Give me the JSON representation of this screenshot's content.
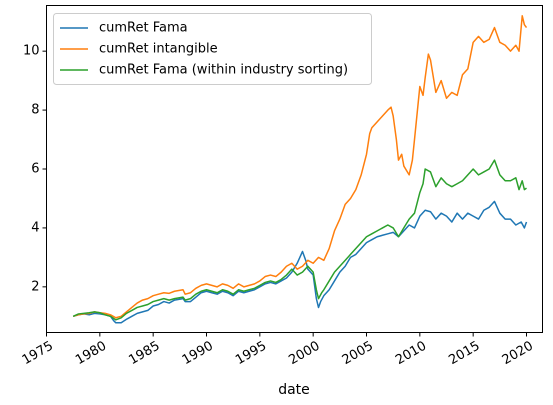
{
  "chart_data": {
    "type": "line",
    "xlabel": "date",
    "ylabel": "",
    "xlim": [
      1975.0,
      2021.5
    ],
    "ylim": [
      0.45,
      11.55
    ],
    "x_ticks": [
      1975,
      1980,
      1985,
      1990,
      1995,
      2000,
      2005,
      2010,
      2015,
      2020
    ],
    "x_tick_labels": [
      "1975",
      "1980",
      "1985",
      "1990",
      "1995",
      "2000",
      "2005",
      "2010",
      "2015",
      "2020"
    ],
    "y_ticks": [
      2,
      4,
      6,
      8,
      10
    ],
    "y_tick_labels": [
      "2",
      "4",
      "6",
      "8",
      "10"
    ],
    "grid": false,
    "legend_position": "top-left",
    "series": [
      {
        "name": "cumRet Fama",
        "color": "#1f77b4",
        "points": [
          [
            1977.5,
            1.0
          ],
          [
            1978.0,
            1.05
          ],
          [
            1978.5,
            1.08
          ],
          [
            1979.0,
            1.05
          ],
          [
            1979.5,
            1.1
          ],
          [
            1980.0,
            1.08
          ],
          [
            1980.5,
            1.05
          ],
          [
            1981.0,
            1.0
          ],
          [
            1981.3,
            0.85
          ],
          [
            1981.5,
            0.78
          ],
          [
            1982.0,
            0.78
          ],
          [
            1982.5,
            0.9
          ],
          [
            1983.0,
            1.0
          ],
          [
            1983.5,
            1.1
          ],
          [
            1984.0,
            1.15
          ],
          [
            1984.5,
            1.2
          ],
          [
            1985.0,
            1.35
          ],
          [
            1985.5,
            1.4
          ],
          [
            1986.0,
            1.5
          ],
          [
            1986.5,
            1.45
          ],
          [
            1987.0,
            1.55
          ],
          [
            1987.8,
            1.6
          ],
          [
            1988.0,
            1.5
          ],
          [
            1988.5,
            1.5
          ],
          [
            1989.0,
            1.65
          ],
          [
            1989.5,
            1.8
          ],
          [
            1990.0,
            1.85
          ],
          [
            1990.5,
            1.8
          ],
          [
            1991.0,
            1.75
          ],
          [
            1991.5,
            1.85
          ],
          [
            1992.0,
            1.8
          ],
          [
            1992.5,
            1.7
          ],
          [
            1993.0,
            1.85
          ],
          [
            1993.5,
            1.8
          ],
          [
            1994.0,
            1.85
          ],
          [
            1994.5,
            1.9
          ],
          [
            1995.0,
            2.0
          ],
          [
            1995.5,
            2.1
          ],
          [
            1996.0,
            2.15
          ],
          [
            1996.5,
            2.1
          ],
          [
            1997.0,
            2.2
          ],
          [
            1997.5,
            2.3
          ],
          [
            1998.0,
            2.5
          ],
          [
            1998.5,
            2.8
          ],
          [
            1999.0,
            3.2
          ],
          [
            1999.3,
            2.9
          ],
          [
            1999.5,
            2.6
          ],
          [
            2000.0,
            2.4
          ],
          [
            2000.3,
            1.6
          ],
          [
            2000.5,
            1.3
          ],
          [
            2000.7,
            1.5
          ],
          [
            2001.0,
            1.7
          ],
          [
            2001.5,
            1.9
          ],
          [
            2002.0,
            2.2
          ],
          [
            2002.5,
            2.5
          ],
          [
            2003.0,
            2.7
          ],
          [
            2003.5,
            3.0
          ],
          [
            2004.0,
            3.1
          ],
          [
            2004.5,
            3.3
          ],
          [
            2005.0,
            3.5
          ],
          [
            2005.5,
            3.6
          ],
          [
            2006.0,
            3.7
          ],
          [
            2006.5,
            3.75
          ],
          [
            2007.0,
            3.8
          ],
          [
            2007.5,
            3.85
          ],
          [
            2008.0,
            3.7
          ],
          [
            2008.5,
            3.9
          ],
          [
            2009.0,
            4.1
          ],
          [
            2009.5,
            4.0
          ],
          [
            2010.0,
            4.4
          ],
          [
            2010.5,
            4.6
          ],
          [
            2011.0,
            4.55
          ],
          [
            2011.5,
            4.3
          ],
          [
            2012.0,
            4.5
          ],
          [
            2012.5,
            4.4
          ],
          [
            2013.0,
            4.2
          ],
          [
            2013.5,
            4.5
          ],
          [
            2014.0,
            4.3
          ],
          [
            2014.5,
            4.5
          ],
          [
            2015.0,
            4.4
          ],
          [
            2015.5,
            4.3
          ],
          [
            2016.0,
            4.6
          ],
          [
            2016.5,
            4.7
          ],
          [
            2017.0,
            4.9
          ],
          [
            2017.5,
            4.5
          ],
          [
            2018.0,
            4.3
          ],
          [
            2018.5,
            4.3
          ],
          [
            2019.0,
            4.1
          ],
          [
            2019.5,
            4.2
          ],
          [
            2019.8,
            4.0
          ],
          [
            2020.0,
            4.2
          ]
        ]
      },
      {
        "name": "cumRet intangible",
        "color": "#ff7f0e",
        "points": [
          [
            1977.5,
            1.0
          ],
          [
            1978.0,
            1.05
          ],
          [
            1978.5,
            1.08
          ],
          [
            1979.0,
            1.1
          ],
          [
            1979.5,
            1.15
          ],
          [
            1980.0,
            1.12
          ],
          [
            1980.5,
            1.1
          ],
          [
            1981.0,
            1.05
          ],
          [
            1981.5,
            0.95
          ],
          [
            1982.0,
            1.0
          ],
          [
            1982.5,
            1.15
          ],
          [
            1983.0,
            1.3
          ],
          [
            1983.5,
            1.45
          ],
          [
            1984.0,
            1.55
          ],
          [
            1984.5,
            1.6
          ],
          [
            1985.0,
            1.7
          ],
          [
            1985.5,
            1.75
          ],
          [
            1986.0,
            1.8
          ],
          [
            1986.5,
            1.78
          ],
          [
            1987.0,
            1.85
          ],
          [
            1987.8,
            1.9
          ],
          [
            1988.0,
            1.75
          ],
          [
            1988.5,
            1.8
          ],
          [
            1989.0,
            1.95
          ],
          [
            1989.5,
            2.05
          ],
          [
            1990.0,
            2.1
          ],
          [
            1990.5,
            2.05
          ],
          [
            1991.0,
            2.0
          ],
          [
            1991.5,
            2.1
          ],
          [
            1992.0,
            2.05
          ],
          [
            1992.5,
            1.95
          ],
          [
            1993.0,
            2.1
          ],
          [
            1993.5,
            2.0
          ],
          [
            1994.0,
            2.05
          ],
          [
            1994.5,
            2.1
          ],
          [
            1995.0,
            2.2
          ],
          [
            1995.5,
            2.35
          ],
          [
            1996.0,
            2.4
          ],
          [
            1996.5,
            2.35
          ],
          [
            1997.0,
            2.5
          ],
          [
            1997.5,
            2.7
          ],
          [
            1998.0,
            2.8
          ],
          [
            1998.5,
            2.6
          ],
          [
            1999.0,
            2.7
          ],
          [
            1999.5,
            2.9
          ],
          [
            2000.0,
            2.8
          ],
          [
            2000.5,
            3.0
          ],
          [
            2001.0,
            2.9
          ],
          [
            2001.5,
            3.3
          ],
          [
            2002.0,
            3.9
          ],
          [
            2002.5,
            4.3
          ],
          [
            2003.0,
            4.8
          ],
          [
            2003.5,
            5.0
          ],
          [
            2004.0,
            5.3
          ],
          [
            2004.5,
            5.8
          ],
          [
            2005.0,
            6.5
          ],
          [
            2005.3,
            7.2
          ],
          [
            2005.5,
            7.4
          ],
          [
            2006.0,
            7.6
          ],
          [
            2006.5,
            7.8
          ],
          [
            2007.0,
            8.0
          ],
          [
            2007.3,
            8.1
          ],
          [
            2007.5,
            7.8
          ],
          [
            2007.8,
            7.0
          ],
          [
            2008.0,
            6.3
          ],
          [
            2008.3,
            6.5
          ],
          [
            2008.5,
            6.1
          ],
          [
            2009.0,
            5.8
          ],
          [
            2009.3,
            6.3
          ],
          [
            2009.5,
            7.0
          ],
          [
            2010.0,
            8.8
          ],
          [
            2010.3,
            8.5
          ],
          [
            2010.5,
            9.1
          ],
          [
            2010.8,
            9.9
          ],
          [
            2011.0,
            9.7
          ],
          [
            2011.5,
            8.6
          ],
          [
            2012.0,
            9.0
          ],
          [
            2012.5,
            8.4
          ],
          [
            2013.0,
            8.6
          ],
          [
            2013.5,
            8.5
          ],
          [
            2014.0,
            9.2
          ],
          [
            2014.5,
            9.4
          ],
          [
            2015.0,
            10.3
          ],
          [
            2015.5,
            10.5
          ],
          [
            2016.0,
            10.3
          ],
          [
            2016.5,
            10.4
          ],
          [
            2017.0,
            10.8
          ],
          [
            2017.5,
            10.3
          ],
          [
            2018.0,
            10.2
          ],
          [
            2018.5,
            10.0
          ],
          [
            2019.0,
            10.2
          ],
          [
            2019.3,
            10.0
          ],
          [
            2019.6,
            11.2
          ],
          [
            2019.8,
            10.9
          ],
          [
            2020.0,
            10.8
          ]
        ]
      },
      {
        "name": "cumRet Fama (within industry sorting)",
        "color": "#2ca02c",
        "points": [
          [
            1977.5,
            1.0
          ],
          [
            1978.0,
            1.08
          ],
          [
            1978.5,
            1.1
          ],
          [
            1979.0,
            1.12
          ],
          [
            1979.5,
            1.15
          ],
          [
            1980.0,
            1.12
          ],
          [
            1980.5,
            1.05
          ],
          [
            1981.0,
            1.0
          ],
          [
            1981.5,
            0.88
          ],
          [
            1982.0,
            0.95
          ],
          [
            1982.5,
            1.1
          ],
          [
            1983.0,
            1.2
          ],
          [
            1983.5,
            1.3
          ],
          [
            1984.0,
            1.35
          ],
          [
            1984.5,
            1.4
          ],
          [
            1985.0,
            1.5
          ],
          [
            1985.5,
            1.55
          ],
          [
            1986.0,
            1.6
          ],
          [
            1986.5,
            1.55
          ],
          [
            1987.0,
            1.6
          ],
          [
            1987.8,
            1.65
          ],
          [
            1988.0,
            1.55
          ],
          [
            1988.5,
            1.6
          ],
          [
            1989.0,
            1.75
          ],
          [
            1989.5,
            1.85
          ],
          [
            1990.0,
            1.9
          ],
          [
            1990.5,
            1.85
          ],
          [
            1991.0,
            1.8
          ],
          [
            1991.5,
            1.9
          ],
          [
            1992.0,
            1.85
          ],
          [
            1992.5,
            1.75
          ],
          [
            1993.0,
            1.9
          ],
          [
            1993.5,
            1.85
          ],
          [
            1994.0,
            1.9
          ],
          [
            1994.5,
            1.95
          ],
          [
            1995.0,
            2.05
          ],
          [
            1995.5,
            2.15
          ],
          [
            1996.0,
            2.2
          ],
          [
            1996.5,
            2.15
          ],
          [
            1997.0,
            2.25
          ],
          [
            1997.5,
            2.4
          ],
          [
            1998.0,
            2.6
          ],
          [
            1998.5,
            2.4
          ],
          [
            1999.0,
            2.5
          ],
          [
            1999.5,
            2.7
          ],
          [
            2000.0,
            2.5
          ],
          [
            2000.3,
            1.9
          ],
          [
            2000.5,
            1.6
          ],
          [
            2000.8,
            1.8
          ],
          [
            2001.0,
            1.9
          ],
          [
            2001.5,
            2.2
          ],
          [
            2002.0,
            2.5
          ],
          [
            2002.5,
            2.7
          ],
          [
            2003.0,
            2.9
          ],
          [
            2003.5,
            3.1
          ],
          [
            2004.0,
            3.3
          ],
          [
            2004.5,
            3.5
          ],
          [
            2005.0,
            3.7
          ],
          [
            2005.5,
            3.8
          ],
          [
            2006.0,
            3.9
          ],
          [
            2006.5,
            4.0
          ],
          [
            2007.0,
            4.1
          ],
          [
            2007.5,
            4.0
          ],
          [
            2008.0,
            3.7
          ],
          [
            2008.5,
            4.0
          ],
          [
            2009.0,
            4.3
          ],
          [
            2009.5,
            4.5
          ],
          [
            2010.0,
            5.2
          ],
          [
            2010.3,
            5.5
          ],
          [
            2010.5,
            6.0
          ],
          [
            2011.0,
            5.9
          ],
          [
            2011.5,
            5.4
          ],
          [
            2012.0,
            5.7
          ],
          [
            2012.5,
            5.5
          ],
          [
            2013.0,
            5.4
          ],
          [
            2013.5,
            5.5
          ],
          [
            2014.0,
            5.6
          ],
          [
            2014.5,
            5.8
          ],
          [
            2015.0,
            6.0
          ],
          [
            2015.5,
            5.8
          ],
          [
            2016.0,
            5.9
          ],
          [
            2016.5,
            6.0
          ],
          [
            2017.0,
            6.3
          ],
          [
            2017.5,
            5.8
          ],
          [
            2018.0,
            5.6
          ],
          [
            2018.5,
            5.6
          ],
          [
            2019.0,
            5.7
          ],
          [
            2019.3,
            5.3
          ],
          [
            2019.6,
            5.6
          ],
          [
            2019.8,
            5.3
          ],
          [
            2020.0,
            5.35
          ]
        ]
      }
    ]
  }
}
